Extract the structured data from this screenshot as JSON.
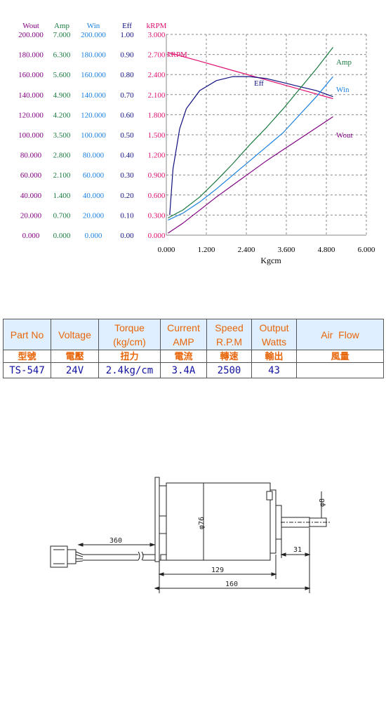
{
  "chart_data": {
    "type": "line",
    "xlabel": "Kgcm",
    "xlim": [
      0,
      6
    ],
    "x_ticks": [
      "0.000",
      "1.200",
      "2.400",
      "3.600",
      "4.800",
      "6.000"
    ],
    "axes": [
      {
        "name": "Wout",
        "color": "#800080",
        "ticks": [
          "200.000",
          "180.000",
          "160.000",
          "140.000",
          "120.000",
          "100.000",
          "80.000",
          "60.000",
          "40.000",
          "20.000",
          "0.000"
        ]
      },
      {
        "name": "Amp",
        "color": "#1a7a40",
        "ticks": [
          "7.000",
          "6.300",
          "5.600",
          "4.900",
          "4.200",
          "3.500",
          "2.800",
          "2.100",
          "1.400",
          "0.700",
          "0.000"
        ]
      },
      {
        "name": "Win",
        "color": "#1a80e0",
        "ticks": [
          "200.000",
          "180.000",
          "160.000",
          "140.000",
          "120.000",
          "100.000",
          "80.000",
          "60.000",
          "40.000",
          "20.000",
          "0.000"
        ]
      },
      {
        "name": "Eff",
        "color": "#101080",
        "ticks": [
          "1.00",
          "0.90",
          "0.80",
          "0.70",
          "0.60",
          "0.50",
          "0.40",
          "0.30",
          "0.20",
          "0.10",
          "0.00"
        ]
      },
      {
        "name": "kRPM",
        "color": "#e01070",
        "ticks": [
          "3.000",
          "2.700",
          "2.400",
          "2.100",
          "1.800",
          "1.500",
          "1.200",
          "0.900",
          "0.600",
          "0.300",
          "0.000"
        ]
      }
    ],
    "grid": true,
    "series": [
      {
        "name": "kRPM",
        "color": "#e01070",
        "ymax": 3.0,
        "x": [
          0.05,
          1.0,
          2.0,
          3.0,
          4.0,
          5.0
        ],
        "y": [
          2.73,
          2.6,
          2.46,
          2.32,
          2.18,
          2.04
        ]
      },
      {
        "name": "Eff",
        "color": "#101080",
        "ymax": 1.0,
        "x": [
          0.1,
          0.2,
          0.4,
          0.6,
          1.0,
          1.5,
          2.0,
          2.5,
          3.0,
          3.5,
          4.0,
          4.5,
          5.0
        ],
        "y": [
          0.1,
          0.33,
          0.53,
          0.63,
          0.72,
          0.77,
          0.79,
          0.79,
          0.78,
          0.76,
          0.74,
          0.72,
          0.69
        ]
      },
      {
        "name": "Amp",
        "color": "#1a7a40",
        "ymax": 7.0,
        "x": [
          0.05,
          0.5,
          1.0,
          1.5,
          2.0,
          2.5,
          3.0,
          3.5,
          4.0,
          4.5,
          5.0
        ],
        "y": [
          0.6,
          0.88,
          1.33,
          1.9,
          2.5,
          3.15,
          3.75,
          4.4,
          5.1,
          5.8,
          6.55
        ]
      },
      {
        "name": "Win",
        "color": "#1a80e0",
        "ymax": 200.0,
        "x": [
          0.05,
          0.5,
          1.0,
          1.5,
          2.0,
          2.5,
          3.0,
          3.5,
          4.0,
          4.5,
          5.0
        ],
        "y": [
          15,
          22,
          33,
          46,
          60,
          74,
          88,
          102,
          120,
          138,
          158
        ]
      },
      {
        "name": "Wout",
        "color": "#800080",
        "ymax": 200.0,
        "x": [
          0.05,
          0.5,
          1.0,
          1.5,
          2.0,
          2.5,
          3.0,
          3.5,
          4.0,
          4.5,
          5.0
        ],
        "y": [
          2,
          12,
          25,
          38,
          50,
          62,
          74,
          85,
          96,
          107,
          118
        ]
      }
    ],
    "labels": [
      {
        "text": "kRPM",
        "color": "#e01070"
      },
      {
        "text": "Eff",
        "color": "#101080"
      },
      {
        "text": "Amp",
        "color": "#1a7a40"
      },
      {
        "text": "Win",
        "color": "#1a80e0"
      },
      {
        "text": "Wout",
        "color": "#800080"
      }
    ]
  },
  "spec_table": {
    "headers_en": [
      "Part No",
      "Voltage",
      "Torque\n(kg/cm)",
      "Current\nAMP",
      "Speed\nR.P.M",
      "Output\nWatts",
      "Air  Flow"
    ],
    "headers_cn": [
      "型號",
      "電壓",
      "扭力",
      "電流",
      "轉速",
      "輸出",
      "風量"
    ],
    "values": [
      "TS-547",
      "24V",
      "2.4kg/cm",
      "3.4A",
      "2500",
      "43",
      ""
    ]
  },
  "drawing": {
    "dim_cable": "360",
    "dim_diameter": "φ76",
    "dim_shaft": "φ8",
    "dim_shaft_len": "31",
    "dim_body": "129",
    "dim_total": "160"
  }
}
